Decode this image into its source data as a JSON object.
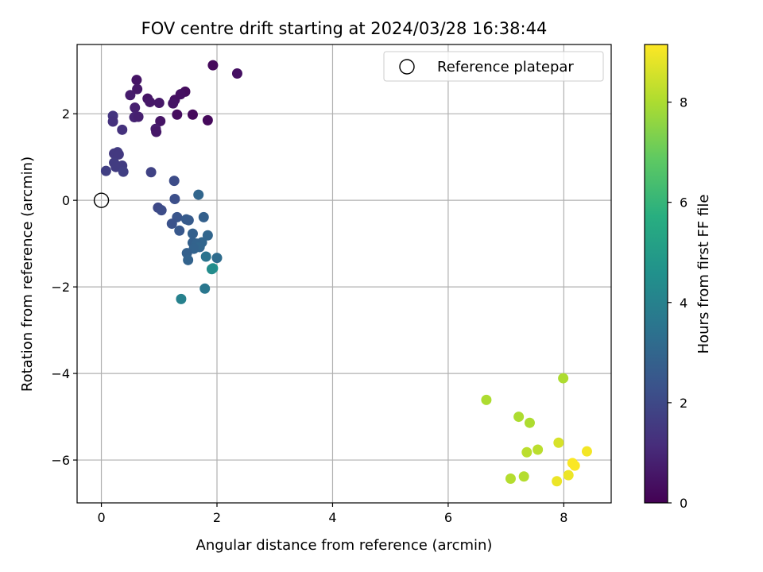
{
  "chart_data": {
    "type": "scatter",
    "title": "FOV centre drift starting at 2024/03/28 16:38:44",
    "xlabel": "Angular distance from reference (arcmin)",
    "ylabel": "Rotation from reference (arcmin)",
    "xlim": [
      -0.42,
      8.82
    ],
    "ylim": [
      -6.99,
      3.6
    ],
    "x_ticks": [
      0,
      2,
      4,
      6,
      8
    ],
    "y_ticks": [
      -6,
      -4,
      -2,
      0,
      2
    ],
    "x_tick_labels": [
      "0",
      "2",
      "4",
      "6",
      "8"
    ],
    "y_tick_labels": [
      "−6",
      "−4",
      "−2",
      "0",
      "2"
    ],
    "grid": true,
    "legend": {
      "position": "top-right",
      "entries": [
        "Reference platepar"
      ]
    },
    "reference_point": {
      "x": 0,
      "y": 0
    },
    "colorbar": {
      "label": "Hours from first FF file",
      "range": [
        0,
        9.15
      ],
      "ticks": [
        0,
        2,
        4,
        6,
        8
      ],
      "tick_labels": [
        "0",
        "2",
        "4",
        "6",
        "8"
      ],
      "colormap": "viridis"
    },
    "points": [
      {
        "x": 1.93,
        "y": 3.12,
        "c": 0.2
      },
      {
        "x": 2.35,
        "y": 2.93,
        "c": 0.4
      },
      {
        "x": 0.61,
        "y": 2.78,
        "c": 0.5
      },
      {
        "x": 0.62,
        "y": 2.57,
        "c": 0.6
      },
      {
        "x": 1.45,
        "y": 2.51,
        "c": 0.3
      },
      {
        "x": 1.37,
        "y": 2.45,
        "c": 0.4
      },
      {
        "x": 0.5,
        "y": 2.43,
        "c": 0.7
      },
      {
        "x": 0.8,
        "y": 2.35,
        "c": 0.5
      },
      {
        "x": 1.27,
        "y": 2.32,
        "c": 0.4
      },
      {
        "x": 0.84,
        "y": 2.27,
        "c": 0.6
      },
      {
        "x": 1.24,
        "y": 2.24,
        "c": 0.5
      },
      {
        "x": 1.0,
        "y": 2.25,
        "c": 0.6
      },
      {
        "x": 0.58,
        "y": 2.14,
        "c": 0.8
      },
      {
        "x": 1.31,
        "y": 1.98,
        "c": 0.3
      },
      {
        "x": 1.58,
        "y": 1.98,
        "c": 0.2
      },
      {
        "x": 0.2,
        "y": 1.95,
        "c": 1.4
      },
      {
        "x": 0.57,
        "y": 1.92,
        "c": 0.9
      },
      {
        "x": 0.64,
        "y": 1.93,
        "c": 0.8
      },
      {
        "x": 1.84,
        "y": 1.85,
        "c": 0.2
      },
      {
        "x": 1.02,
        "y": 1.83,
        "c": 0.5
      },
      {
        "x": 0.2,
        "y": 1.82,
        "c": 1.3
      },
      {
        "x": 0.94,
        "y": 1.65,
        "c": 0.7
      },
      {
        "x": 0.36,
        "y": 1.63,
        "c": 1.3
      },
      {
        "x": 0.95,
        "y": 1.58,
        "c": 0.6
      },
      {
        "x": 0.28,
        "y": 1.11,
        "c": 1.6
      },
      {
        "x": 0.22,
        "y": 1.08,
        "c": 1.5
      },
      {
        "x": 0.3,
        "y": 1.06,
        "c": 1.5
      },
      {
        "x": 0.22,
        "y": 0.87,
        "c": 1.6
      },
      {
        "x": 0.36,
        "y": 0.8,
        "c": 1.6
      },
      {
        "x": 0.25,
        "y": 0.77,
        "c": 1.6
      },
      {
        "x": 0.08,
        "y": 0.68,
        "c": 1.7
      },
      {
        "x": 0.38,
        "y": 0.66,
        "c": 1.7
      },
      {
        "x": 0.86,
        "y": 0.65,
        "c": 1.8
      },
      {
        "x": 1.26,
        "y": 0.45,
        "c": 2.1
      },
      {
        "x": 1.68,
        "y": 0.13,
        "c": 3.0
      },
      {
        "x": 1.27,
        "y": 0.03,
        "c": 2.2
      },
      {
        "x": 0.98,
        "y": -0.17,
        "c": 2.0
      },
      {
        "x": 1.04,
        "y": -0.23,
        "c": 2.1
      },
      {
        "x": 1.77,
        "y": -0.39,
        "c": 2.8
      },
      {
        "x": 1.31,
        "y": -0.39,
        "c": 2.4
      },
      {
        "x": 1.47,
        "y": -0.44,
        "c": 2.6
      },
      {
        "x": 1.51,
        "y": -0.46,
        "c": 2.6
      },
      {
        "x": 1.22,
        "y": -0.54,
        "c": 2.3
      },
      {
        "x": 1.35,
        "y": -0.7,
        "c": 2.5
      },
      {
        "x": 1.58,
        "y": -0.77,
        "c": 2.8
      },
      {
        "x": 1.84,
        "y": -0.81,
        "c": 3.0
      },
      {
        "x": 1.74,
        "y": -0.97,
        "c": 3.0
      },
      {
        "x": 1.58,
        "y": -0.98,
        "c": 2.8
      },
      {
        "x": 1.65,
        "y": -1.0,
        "c": 2.9
      },
      {
        "x": 1.7,
        "y": -1.08,
        "c": 3.0
      },
      {
        "x": 1.6,
        "y": -1.12,
        "c": 2.9
      },
      {
        "x": 1.48,
        "y": -1.22,
        "c": 2.8
      },
      {
        "x": 1.81,
        "y": -1.3,
        "c": 3.5
      },
      {
        "x": 2.0,
        "y": -1.33,
        "c": 3.2
      },
      {
        "x": 1.5,
        "y": -1.38,
        "c": 2.9
      },
      {
        "x": 1.93,
        "y": -1.57,
        "c": 4.6
      },
      {
        "x": 1.91,
        "y": -1.59,
        "c": 4.4
      },
      {
        "x": 1.79,
        "y": -2.04,
        "c": 3.6
      },
      {
        "x": 1.38,
        "y": -2.28,
        "c": 4.0
      },
      {
        "x": 7.99,
        "y": -4.11,
        "c": 8.0
      },
      {
        "x": 6.66,
        "y": -4.61,
        "c": 8.0
      },
      {
        "x": 7.22,
        "y": -5.0,
        "c": 8.0
      },
      {
        "x": 7.41,
        "y": -5.14,
        "c": 8.0
      },
      {
        "x": 7.91,
        "y": -5.6,
        "c": 8.6
      },
      {
        "x": 7.55,
        "y": -5.76,
        "c": 8.2
      },
      {
        "x": 7.36,
        "y": -5.82,
        "c": 8.2
      },
      {
        "x": 8.4,
        "y": -5.8,
        "c": 9.0
      },
      {
        "x": 8.15,
        "y": -6.07,
        "c": 9.1
      },
      {
        "x": 8.19,
        "y": -6.13,
        "c": 9.1
      },
      {
        "x": 8.08,
        "y": -6.35,
        "c": 8.9
      },
      {
        "x": 7.31,
        "y": -6.38,
        "c": 8.1
      },
      {
        "x": 7.08,
        "y": -6.43,
        "c": 8.1
      },
      {
        "x": 7.88,
        "y": -6.49,
        "c": 8.9
      }
    ]
  }
}
